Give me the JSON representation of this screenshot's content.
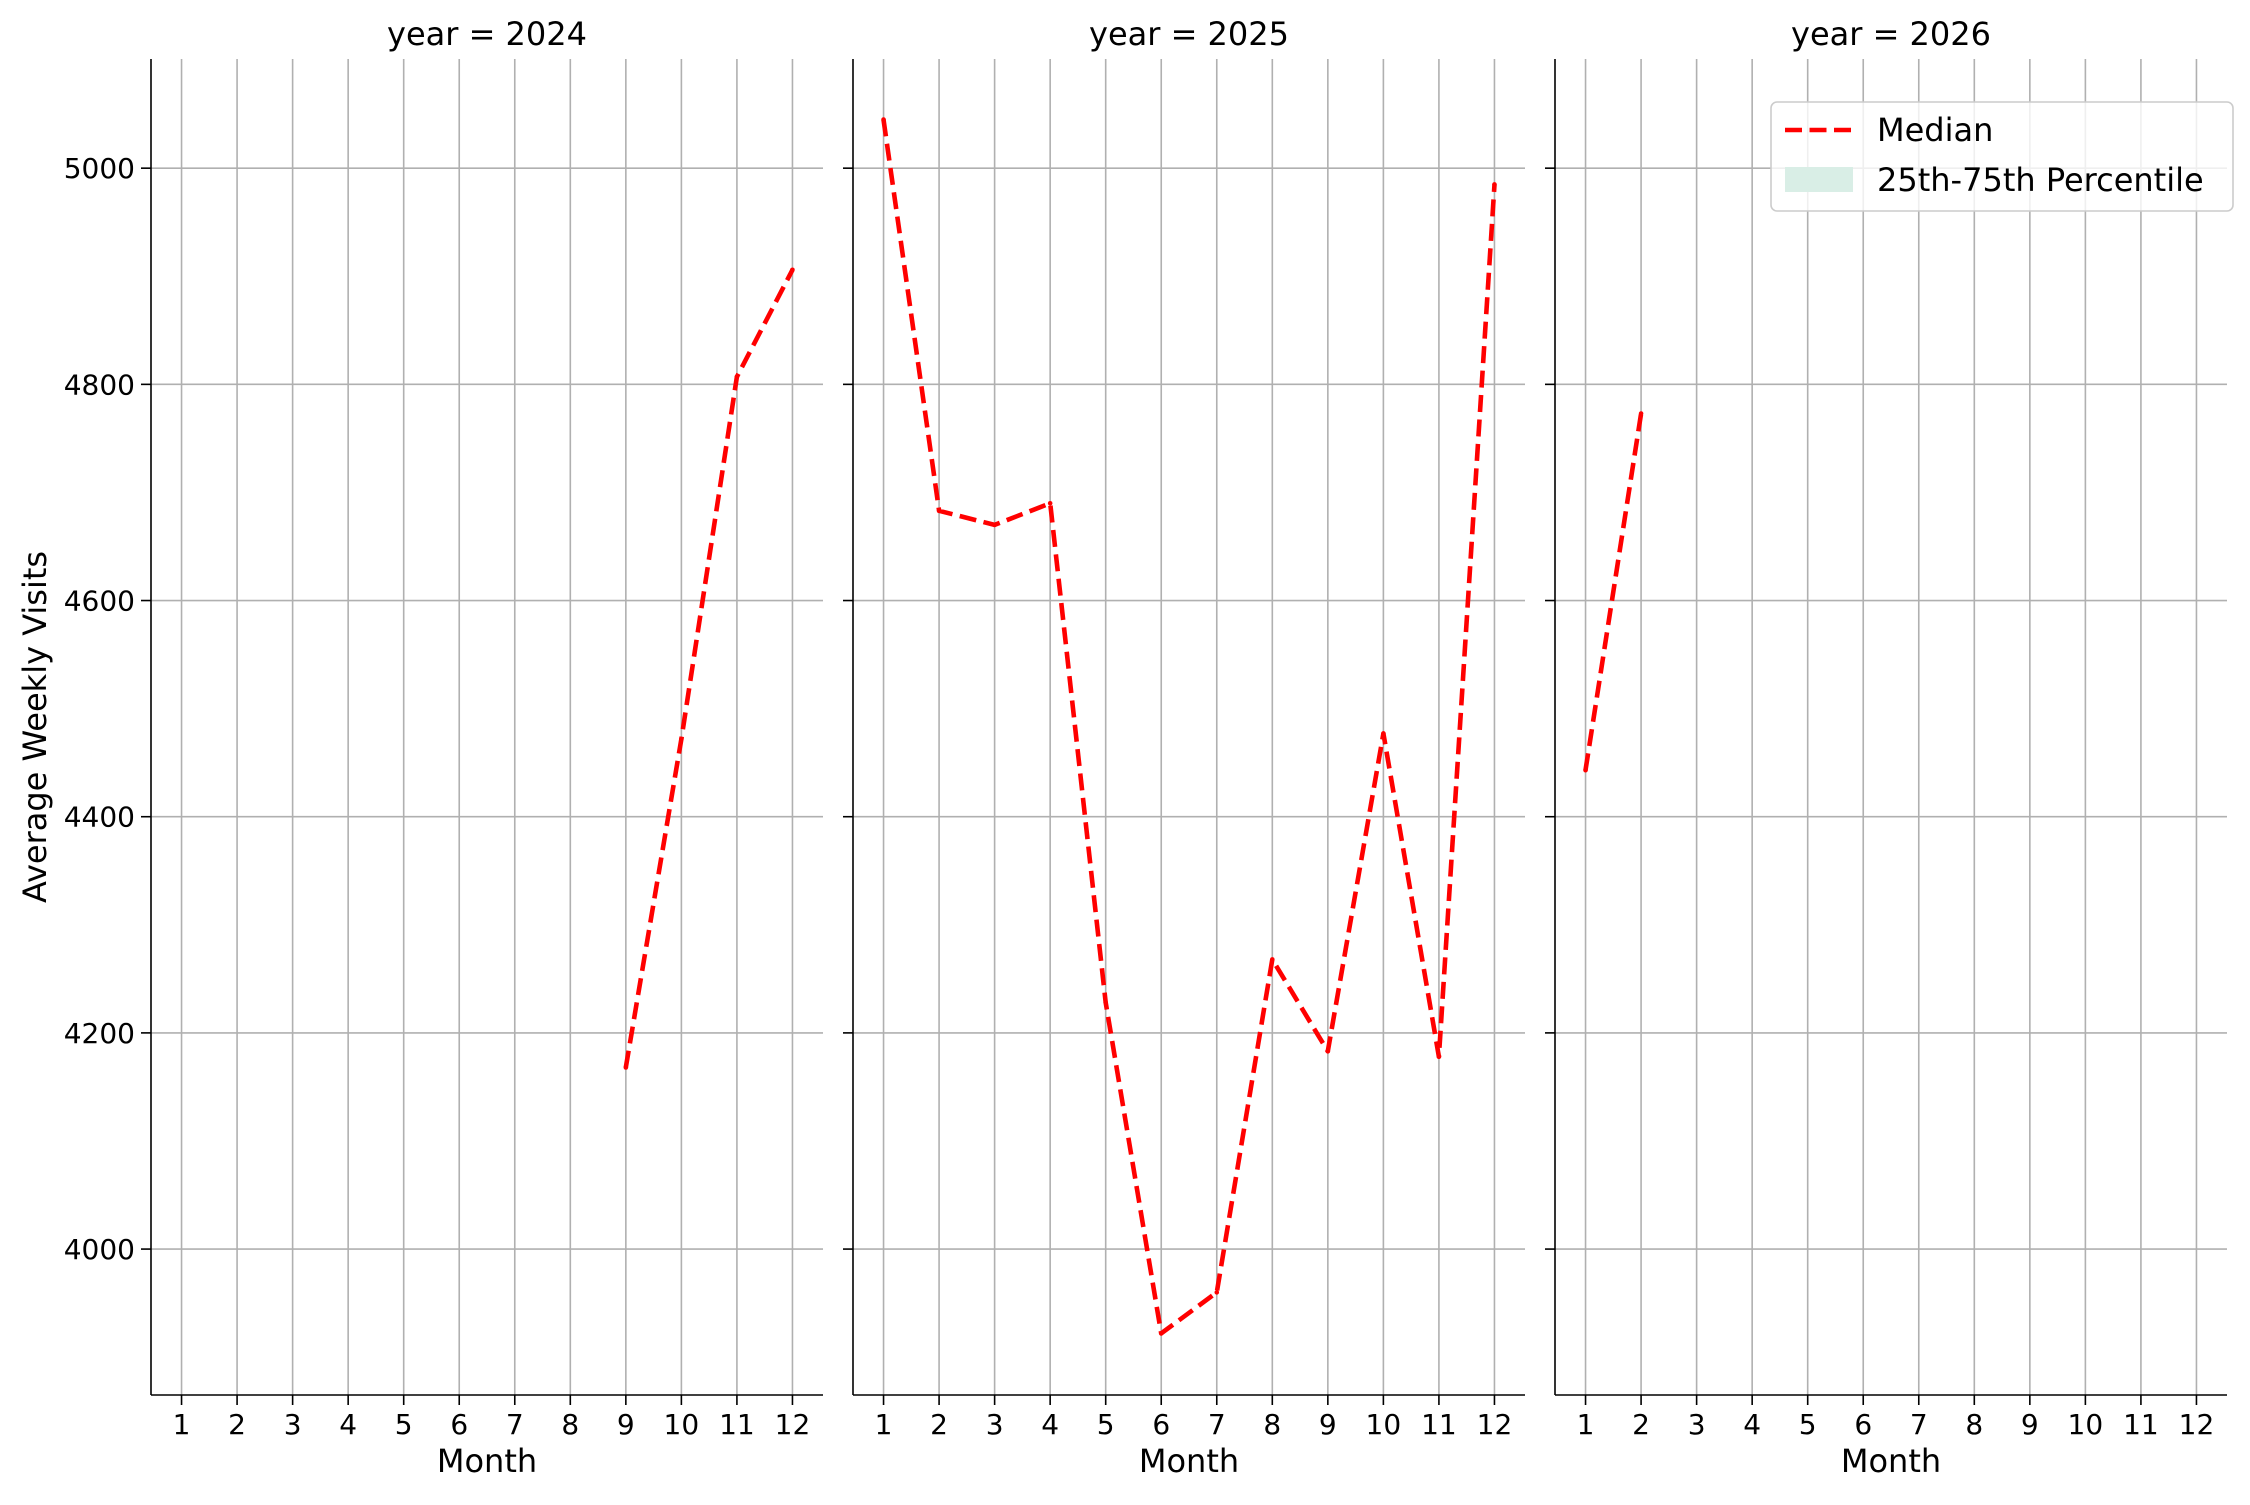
{
  "chart_data": {
    "type": "line",
    "facet_label": "year",
    "ylabel": "Average Weekly Visits",
    "xlabel": "Month",
    "x_ticks": [
      1,
      2,
      3,
      4,
      5,
      6,
      7,
      8,
      9,
      10,
      11,
      12
    ],
    "y_ticks": [
      4000,
      4200,
      4400,
      4600,
      4800,
      5000
    ],
    "ylim": [
      3865,
      5101
    ],
    "xlim": [
      0.45,
      12.55
    ],
    "grid": true,
    "legend": {
      "placement": "top-right of last panel",
      "entries": [
        {
          "label": "Median",
          "style": "dashed-line",
          "color": "#ff0000"
        },
        {
          "label": "25th-75th Percentile",
          "style": "band",
          "color": "#d9eee6"
        }
      ]
    },
    "panels": [
      {
        "title": "year = 2024",
        "series": [
          {
            "name": "Median",
            "x": [
              9,
              10,
              11,
              12
            ],
            "y": [
              4168,
              4472,
              4807,
              4906
            ]
          }
        ]
      },
      {
        "title": "year = 2025",
        "series": [
          {
            "name": "Median",
            "x": [
              1,
              2,
              3,
              4,
              5,
              6,
              7,
              8,
              9,
              10,
              11,
              12
            ],
            "y": [
              5045,
              4683,
              4670,
              4690,
              4228,
              3922,
              3960,
              4268,
              4183,
              4477,
              4178,
              4985
            ]
          }
        ]
      },
      {
        "title": "year = 2026",
        "series": [
          {
            "name": "Median",
            "x": [
              1,
              2
            ],
            "y": [
              4443,
              4773
            ]
          }
        ]
      }
    ],
    "colors": {
      "median": "#ff0000",
      "band": "#d9eee6",
      "grid": "#b0b0b0",
      "axis": "#000000"
    }
  }
}
